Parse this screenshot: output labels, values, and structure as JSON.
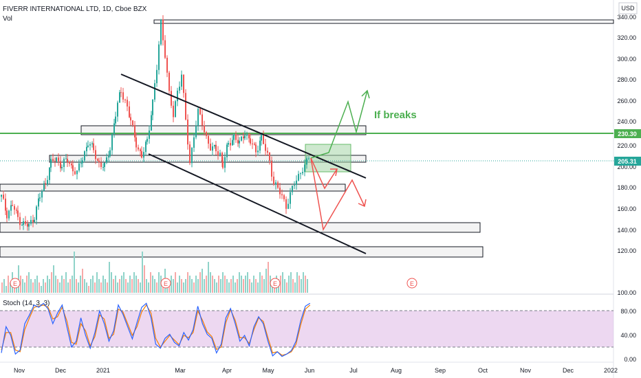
{
  "chart_data": {
    "type": "candlestick",
    "title": "FIVERR INTERNATIONAL LTD, 1D, Cboe BZX",
    "volume_label": "Vol",
    "currency": "USD",
    "y_ticks": [
      "340.00",
      "320.00",
      "300.00",
      "280.00",
      "260.00",
      "240.00",
      "220.00",
      "200.00",
      "180.00",
      "160.00",
      "140.00",
      "120.00",
      "100.00"
    ],
    "x_labels": [
      "Nov",
      "Dec",
      "2021",
      "Mar",
      "Apr",
      "May",
      "Jun",
      "Jul",
      "Aug",
      "Sep",
      "Oct",
      "Nov",
      "Dec",
      "2022"
    ],
    "price_tags": [
      {
        "value": "230.30",
        "color": "#4caf50"
      },
      {
        "value": "205.31",
        "color": "#26a69a"
      }
    ],
    "annotation": "If breaks",
    "earnings_marker": "E",
    "price_path": [
      [
        0,
        168
      ],
      [
        8,
        152
      ],
      [
        16,
        160
      ],
      [
        24,
        148
      ],
      [
        32,
        142
      ],
      [
        40,
        140
      ],
      [
        48,
        150
      ],
      [
        56,
        168
      ],
      [
        64,
        182
      ],
      [
        72,
        200
      ],
      [
        80,
        204
      ],
      [
        88,
        198
      ],
      [
        96,
        203
      ],
      [
        104,
        195
      ],
      [
        110,
        190
      ],
      [
        118,
        205
      ],
      [
        126,
        220
      ],
      [
        134,
        212
      ],
      [
        142,
        200
      ],
      [
        150,
        196
      ],
      [
        158,
        215
      ],
      [
        166,
        246
      ],
      [
        174,
        270
      ],
      [
        180,
        260
      ],
      [
        188,
        240
      ],
      [
        196,
        220
      ],
      [
        204,
        205
      ],
      [
        212,
        222
      ],
      [
        220,
        258
      ],
      [
        226,
        290
      ],
      [
        232,
        335
      ],
      [
        238,
        305
      ],
      [
        244,
        265
      ],
      [
        250,
        245
      ],
      [
        256,
        270
      ],
      [
        262,
        285
      ],
      [
        268,
        240
      ],
      [
        274,
        200
      ],
      [
        280,
        228
      ],
      [
        286,
        248
      ],
      [
        292,
        238
      ],
      [
        298,
        225
      ],
      [
        304,
        215
      ],
      [
        312,
        212
      ],
      [
        318,
        210
      ],
      [
        322,
        198
      ],
      [
        330,
        218
      ],
      [
        338,
        226
      ],
      [
        346,
        218
      ],
      [
        354,
        230
      ],
      [
        362,
        220
      ],
      [
        370,
        212
      ],
      [
        378,
        225
      ],
      [
        384,
        212
      ],
      [
        390,
        202
      ],
      [
        396,
        182
      ],
      [
        402,
        175
      ],
      [
        408,
        168
      ],
      [
        414,
        160
      ],
      [
        420,
        170
      ],
      [
        426,
        180
      ],
      [
        432,
        188
      ],
      [
        438,
        196
      ],
      [
        444,
        200
      ],
      [
        448,
        205.31
      ]
    ],
    "volume": [
      3,
      4,
      2,
      5,
      3,
      6,
      4,
      3,
      8,
      5,
      4,
      3,
      5,
      6,
      4,
      3,
      4,
      5,
      3,
      2,
      4,
      3,
      5,
      4,
      6,
      8,
      5,
      4,
      3,
      5,
      4,
      6,
      3,
      4,
      5,
      12,
      4,
      3,
      5,
      7,
      4,
      3,
      2,
      4,
      5,
      3,
      6,
      4,
      3,
      5,
      4,
      3,
      9,
      6,
      4,
      5,
      3,
      4,
      5,
      6,
      4,
      3,
      5,
      4,
      6,
      5,
      4,
      3,
      12,
      8,
      4,
      3,
      6,
      5,
      4,
      3,
      6,
      5,
      4,
      7,
      4,
      3,
      5,
      4,
      6,
      3,
      5,
      4,
      3,
      4,
      6,
      5,
      4,
      3,
      5,
      4,
      6,
      7,
      4,
      5,
      9,
      6,
      5,
      4,
      3,
      5,
      4,
      6,
      5,
      4,
      3,
      4,
      5,
      3,
      4,
      6,
      5,
      4,
      5,
      6,
      4,
      3,
      5,
      4,
      3,
      6,
      5,
      4,
      7,
      9,
      5,
      4,
      3,
      5,
      4,
      5,
      6,
      4,
      3,
      5,
      6,
      4,
      3,
      6,
      5,
      4,
      6,
      5,
      4,
      3
    ],
    "stoch": {
      "label": "Stoch (14, 3, 3)",
      "ticks": [
        "80.00",
        "40.00",
        "0.00"
      ],
      "k": [
        10,
        55,
        40,
        8,
        15,
        60,
        75,
        92,
        88,
        95,
        85,
        60,
        78,
        92,
        55,
        20,
        30,
        70,
        40,
        18,
        45,
        82,
        60,
        30,
        48,
        92,
        76,
        55,
        34,
        62,
        88,
        95,
        70,
        25,
        18,
        35,
        42,
        28,
        22,
        45,
        32,
        50,
        90,
        60,
        42,
        35,
        10,
        25,
        70,
        86,
        60,
        30,
        40,
        22,
        55,
        72,
        60,
        30,
        5,
        12,
        4,
        8,
        14,
        30,
        65,
        90,
        95
      ],
      "d": [
        15,
        45,
        45,
        15,
        12,
        50,
        70,
        88,
        90,
        92,
        88,
        68,
        72,
        88,
        65,
        28,
        25,
        60,
        48,
        22,
        38,
        75,
        68,
        35,
        42,
        85,
        80,
        60,
        40,
        55,
        80,
        92,
        78,
        35,
        20,
        30,
        40,
        32,
        24,
        40,
        36,
        45,
        82,
        66,
        46,
        38,
        16,
        20,
        62,
        84,
        66,
        36,
        36,
        26,
        50,
        70,
        64,
        36,
        10,
        12,
        6,
        8,
        12,
        25,
        58,
        85,
        92
      ]
    }
  }
}
